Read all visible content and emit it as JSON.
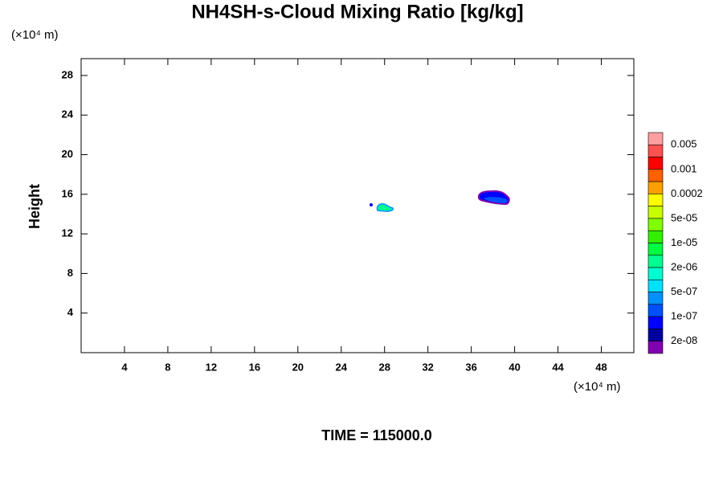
{
  "chart_data": {
    "type": "contour",
    "title": "NH4SH-s-Cloud Mixing Ratio [kg/kg]",
    "y_label": "Height",
    "y_unit": "(×10⁴ m)",
    "x_unit": "(×10⁴ m)",
    "footer": "TIME = 115000.0",
    "xlim": [
      0,
      51
    ],
    "xticks": [
      4,
      8,
      12,
      16,
      20,
      24,
      28,
      32,
      36,
      40,
      44,
      48
    ],
    "ylim": [
      0,
      29.7
    ],
    "yticks": [
      4,
      8,
      12,
      16,
      20,
      24,
      28
    ],
    "colorbar": {
      "colors": [
        "#ff9f9f",
        "#ff5050",
        "#ff0000",
        "#ff6000",
        "#ffa000",
        "#ffff00",
        "#c8ff00",
        "#80ff00",
        "#30f000",
        "#00ff40",
        "#00ff90",
        "#00ffd0",
        "#00e0ff",
        "#0090ff",
        "#0050ff",
        "#0000ff",
        "#0000a0",
        "#8000b0"
      ],
      "ticks": [
        0.005,
        0.001,
        0.0002,
        {
          "value": 5e-05,
          "label": "5e-05"
        },
        {
          "value": 1e-05,
          "label": "1e-05"
        },
        {
          "value": 2e-06,
          "label": "2e-06"
        },
        {
          "value": 5e-07,
          "label": "5e-07"
        },
        {
          "value": 1e-07,
          "label": "1e-07"
        },
        {
          "value": 2e-08,
          "label": "2e-08"
        }
      ]
    }
  }
}
